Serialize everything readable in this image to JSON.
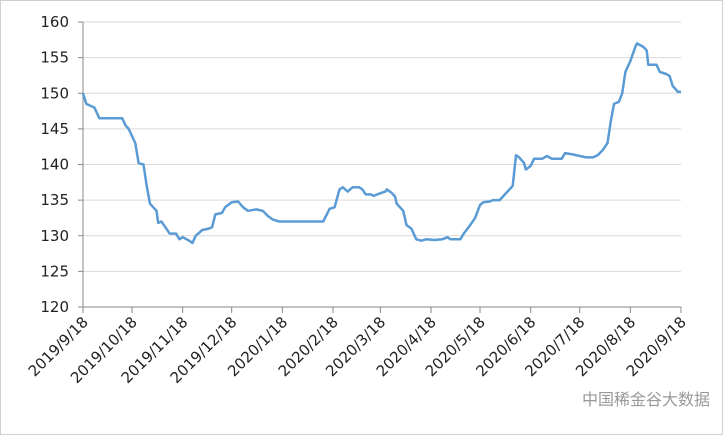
{
  "chart_data": {
    "type": "line",
    "x": [
      "2019/9/18",
      "2019/9/20",
      "2019/9/25",
      "2019/9/28",
      "2019/10/12",
      "2019/10/14",
      "2019/10/16",
      "2019/10/20",
      "2019/10/22",
      "2019/10/25",
      "2019/10/27",
      "2019/10/29",
      "2019/11/2",
      "2019/11/3",
      "2019/11/5",
      "2019/11/8",
      "2019/11/10",
      "2019/11/14",
      "2019/11/16",
      "2019/11/18",
      "2019/11/22",
      "2019/11/24",
      "2019/11/26",
      "2019/11/30",
      "2019/12/4",
      "2019/12/6",
      "2019/12/8",
      "2019/12/12",
      "2019/12/14",
      "2019/12/18",
      "2019/12/22",
      "2019/12/25",
      "2019/12/28",
      "2020/1/2",
      "2020/1/6",
      "2020/1/9",
      "2020/1/12",
      "2020/1/16",
      "2020/2/12",
      "2020/2/16",
      "2020/2/19",
      "2020/2/22",
      "2020/2/24",
      "2020/2/27",
      "2020/3/1",
      "2020/3/5",
      "2020/3/7",
      "2020/3/9",
      "2020/3/12",
      "2020/3/14",
      "2020/3/16",
      "2020/3/21",
      "2020/3/22",
      "2020/3/25",
      "2020/3/27",
      "2020/3/28",
      "2020/4/1",
      "2020/4/3",
      "2020/4/6",
      "2020/4/9",
      "2020/4/12",
      "2020/4/15",
      "2020/4/20",
      "2020/4/25",
      "2020/4/28",
      "2020/4/30",
      "2020/5/6",
      "2020/5/8",
      "2020/5/12",
      "2020/5/15",
      "2020/5/18",
      "2020/5/20",
      "2020/5/24",
      "2020/5/26",
      "2020/5/30",
      "2020/6/3",
      "2020/6/7",
      "2020/6/9",
      "2020/6/11",
      "2020/6/14",
      "2020/6/15",
      "2020/6/18",
      "2020/6/20",
      "2020/6/25",
      "2020/6/28",
      "2020/7/1",
      "2020/7/7",
      "2020/7/9",
      "2020/7/14",
      "2020/7/18",
      "2020/7/22",
      "2020/7/26",
      "2020/7/29",
      "2020/8/1",
      "2020/8/4",
      "2020/8/6",
      "2020/8/8",
      "2020/8/11",
      "2020/8/13",
      "2020/8/15",
      "2020/8/18",
      "2020/8/21",
      "2020/8/22",
      "2020/8/26",
      "2020/8/28",
      "2020/8/29",
      "2020/9/3",
      "2020/9/5",
      "2020/9/9",
      "2020/9/11",
      "2020/9/13",
      "2020/9/15",
      "2020/9/16",
      "2020/9/18"
    ],
    "series": [
      {
        "color": "#5b9bd5",
        "values": [
          150,
          148.5,
          148,
          146.5,
          146.5,
          145.5,
          145,
          143,
          140.2,
          140,
          137,
          134.5,
          133.5,
          131.8,
          132,
          131,
          130.3,
          130.3,
          129.5,
          129.8,
          129.3,
          129,
          130,
          130.8,
          131,
          131.2,
          133,
          133.2,
          134,
          134.7,
          134.8,
          134,
          133.5,
          133.7,
          133.5,
          132.8,
          132.3,
          132,
          132,
          133.8,
          134,
          136.5,
          136.8,
          136.2,
          136.8,
          136.8,
          136.5,
          135.8,
          135.8,
          135.6,
          135.8,
          136.2,
          136.5,
          136,
          135.5,
          134.5,
          133.5,
          131.5,
          131,
          129.5,
          129.3,
          129.5,
          129.4,
          129.5,
          129.8,
          129.5,
          129.5,
          130.3,
          131.5,
          132.5,
          134.3,
          134.7,
          134.8,
          135,
          135,
          136,
          137,
          141.3,
          141,
          140.2,
          139.3,
          139.8,
          140.8,
          140.8,
          141.2,
          140.8,
          140.8,
          141.6,
          141.4,
          141.2,
          141,
          141,
          141.3,
          142,
          143,
          146,
          148.5,
          148.8,
          150,
          153,
          154.5,
          156.5,
          157,
          156.5,
          156,
          154,
          154,
          153,
          152.7,
          152.4,
          151,
          150.5,
          150.2,
          150.2
        ]
      }
    ],
    "ylim": [
      120,
      160
    ],
    "yticks": [
      120,
      125,
      130,
      135,
      140,
      145,
      150,
      155,
      160
    ],
    "xlim": [
      "2019/9/18",
      "2020/9/18"
    ],
    "xticks": [
      "2019/9/18",
      "2019/10/18",
      "2019/11/18",
      "2019/12/18",
      "2020/1/18",
      "2020/2/18",
      "2020/3/18",
      "2020/4/18",
      "2020/5/18",
      "2020/6/18",
      "2020/7/18",
      "2020/8/18",
      "2020/9/18"
    ],
    "grid": true,
    "watermark": "中国稀金谷大数据"
  }
}
